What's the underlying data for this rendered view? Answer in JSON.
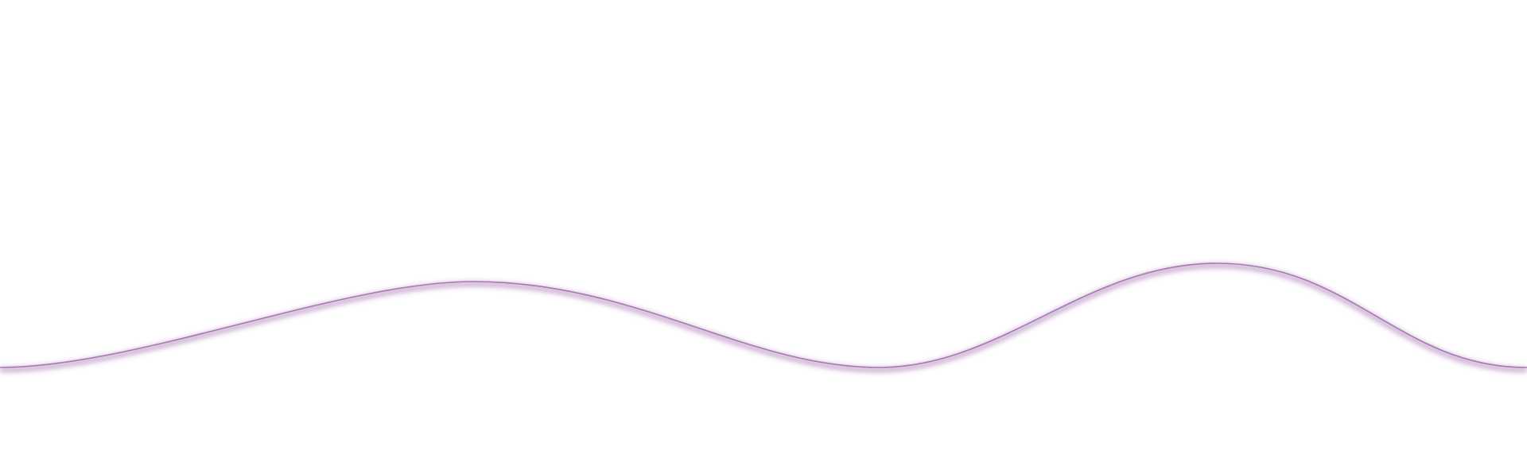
{
  "colors": {
    "background": "#ffffff",
    "wave_line": "#9a6aa4",
    "wave_shadow": "#b48bbd"
  },
  "decoration": {
    "name": "wavy-divider"
  }
}
